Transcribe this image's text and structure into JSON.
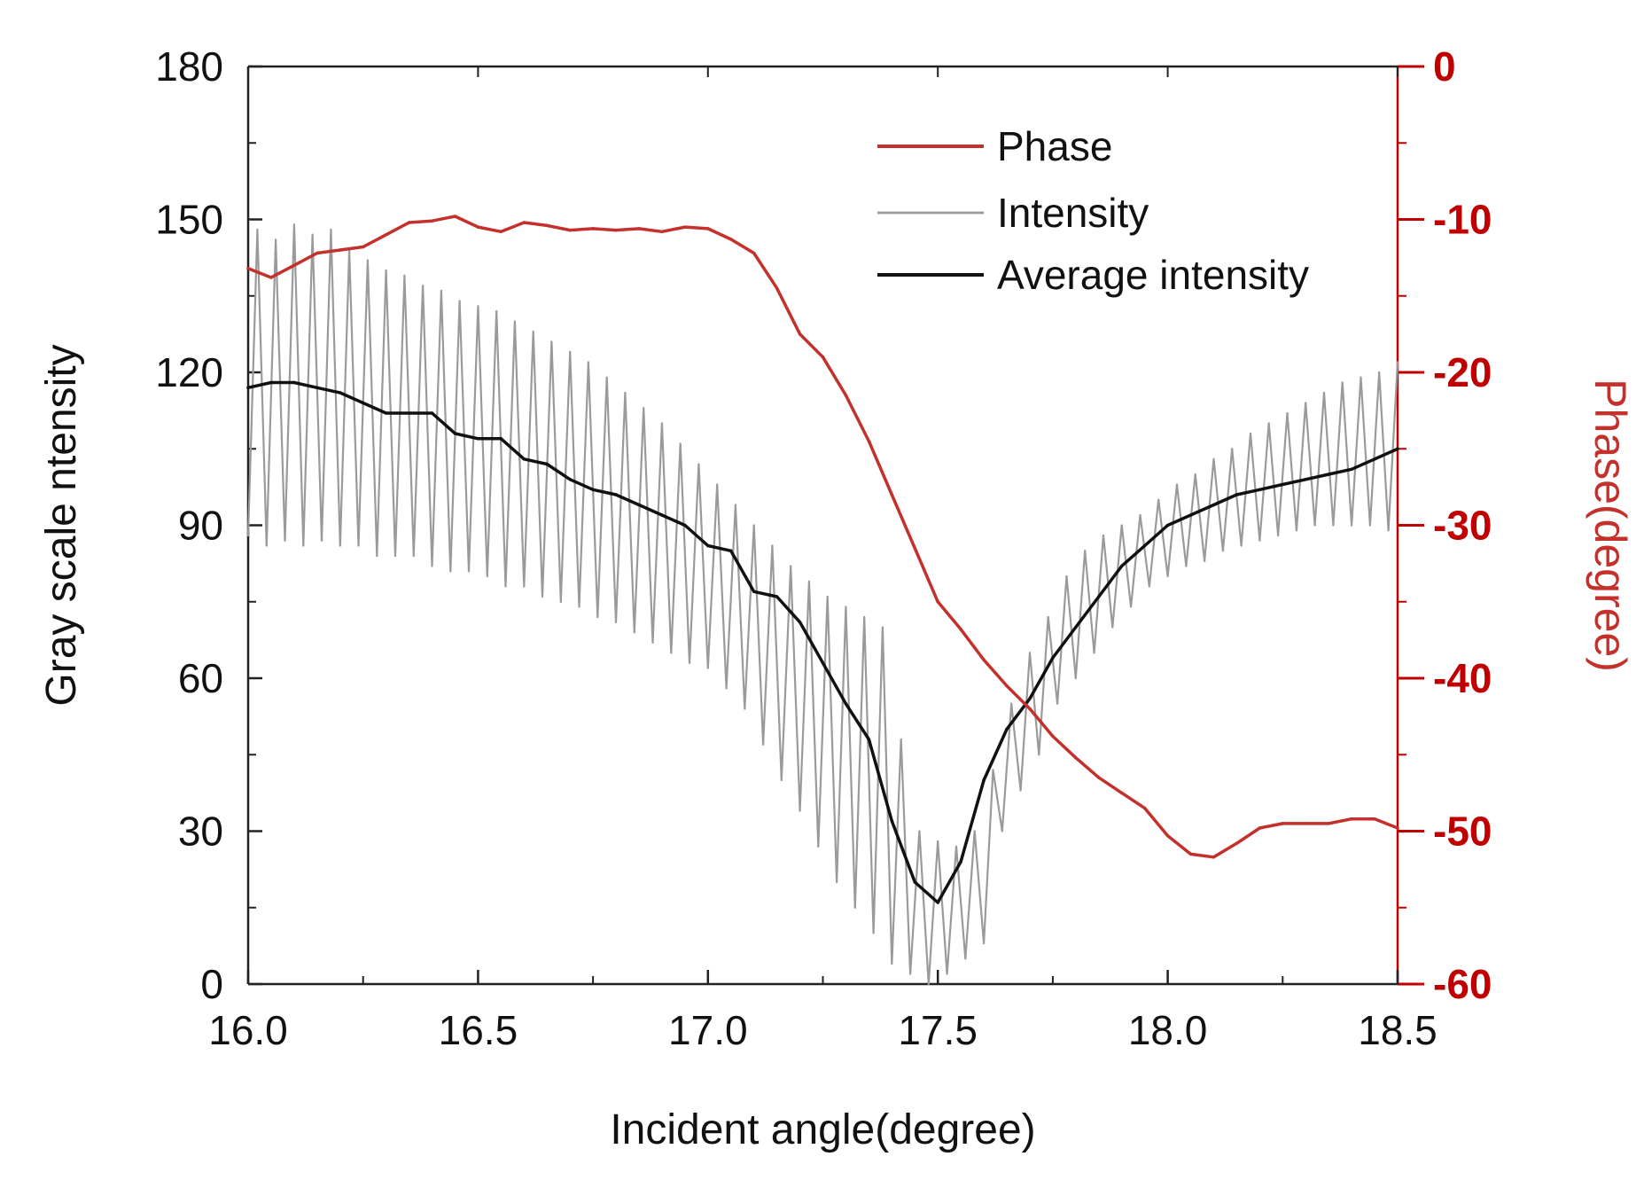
{
  "chart_data": {
    "type": "line",
    "title": "",
    "xlabel": "Incident angle(degree)",
    "ylabel": "Gray scale ntensity",
    "y2label": "Phase(degree)",
    "xlim": [
      16.0,
      18.5
    ],
    "ylim": [
      0,
      180
    ],
    "y2lim": [
      -60,
      0
    ],
    "x_ticks": [
      "16.0",
      "16.5",
      "17.0",
      "17.5",
      "18.0",
      "18.5"
    ],
    "y_ticks": [
      "0",
      "30",
      "60",
      "90",
      "120",
      "150",
      "180"
    ],
    "y2_ticks": [
      "-60",
      "-50",
      "-40",
      "-30",
      "-20",
      "-10",
      "0"
    ],
    "legend_position": "top-right",
    "colors": {
      "phase": "#c4302b",
      "intensity": "#9a9a9a",
      "average": "#111111",
      "right_axis": "#c00000"
    },
    "series": [
      {
        "name": "Phase",
        "axis": "right",
        "x": [
          16.0,
          16.05,
          16.1,
          16.15,
          16.2,
          16.25,
          16.3,
          16.35,
          16.4,
          16.45,
          16.5,
          16.55,
          16.6,
          16.65,
          16.7,
          16.75,
          16.8,
          16.85,
          16.9,
          16.95,
          17.0,
          17.05,
          17.1,
          17.15,
          17.2,
          17.25,
          17.3,
          17.35,
          17.4,
          17.45,
          17.5,
          17.55,
          17.6,
          17.65,
          17.7,
          17.75,
          17.8,
          17.85,
          17.9,
          17.95,
          18.0,
          18.05,
          18.1,
          18.15,
          18.2,
          18.25,
          18.3,
          18.35,
          18.4,
          18.45,
          18.5
        ],
        "values": [
          -13.2,
          -13.8,
          -13.0,
          -12.2,
          -12.0,
          -11.8,
          -11.0,
          -10.2,
          -10.1,
          -9.8,
          -10.5,
          -10.8,
          -10.2,
          -10.4,
          -10.7,
          -10.6,
          -10.7,
          -10.6,
          -10.8,
          -10.5,
          -10.6,
          -11.3,
          -12.2,
          -14.5,
          -17.5,
          -19.0,
          -21.5,
          -24.5,
          -28.0,
          -31.5,
          -35.0,
          -36.8,
          -38.8,
          -40.5,
          -42.0,
          -43.8,
          -45.2,
          -46.5,
          -47.5,
          -48.5,
          -50.3,
          -51.5,
          -51.7,
          -50.8,
          -49.8,
          -49.5,
          -49.5,
          -49.5,
          -49.2,
          -49.2,
          -49.8
        ]
      },
      {
        "name": "Intensity",
        "axis": "left",
        "x": [
          16.0,
          16.02,
          16.04,
          16.06,
          16.08,
          16.1,
          16.12,
          16.14,
          16.16,
          16.18,
          16.2,
          16.22,
          16.24,
          16.26,
          16.28,
          16.3,
          16.32,
          16.34,
          16.36,
          16.38,
          16.4,
          16.42,
          16.44,
          16.46,
          16.48,
          16.5,
          16.52,
          16.54,
          16.56,
          16.58,
          16.6,
          16.62,
          16.64,
          16.66,
          16.68,
          16.7,
          16.72,
          16.74,
          16.76,
          16.78,
          16.8,
          16.82,
          16.84,
          16.86,
          16.88,
          16.9,
          16.92,
          16.94,
          16.96,
          16.98,
          17.0,
          17.02,
          17.04,
          17.06,
          17.08,
          17.1,
          17.12,
          17.14,
          17.16,
          17.18,
          17.2,
          17.22,
          17.24,
          17.26,
          17.28,
          17.3,
          17.32,
          17.34,
          17.36,
          17.38,
          17.4,
          17.42,
          17.44,
          17.46,
          17.48,
          17.5,
          17.52,
          17.54,
          17.56,
          17.58,
          17.6,
          17.62,
          17.64,
          17.66,
          17.68,
          17.7,
          17.72,
          17.74,
          17.76,
          17.78,
          17.8,
          17.82,
          17.84,
          17.86,
          17.88,
          17.9,
          17.92,
          17.94,
          17.96,
          17.98,
          18.0,
          18.02,
          18.04,
          18.06,
          18.08,
          18.1,
          18.12,
          18.14,
          18.16,
          18.18,
          18.2,
          18.22,
          18.24,
          18.26,
          18.28,
          18.3,
          18.32,
          18.34,
          18.36,
          18.38,
          18.4,
          18.42,
          18.44,
          18.46,
          18.48,
          18.5
        ],
        "values": [
          88,
          148,
          86,
          146,
          87,
          149,
          86,
          147,
          87,
          148,
          86,
          144,
          86,
          142,
          84,
          140,
          84,
          139,
          84,
          137,
          82,
          136,
          81,
          134,
          81,
          133,
          80,
          132,
          78,
          130,
          78,
          128,
          76,
          126,
          75,
          124,
          74,
          122,
          72,
          119,
          71,
          116,
          69,
          113,
          67,
          110,
          65,
          106,
          63,
          102,
          62,
          98,
          58,
          94,
          54,
          90,
          47,
          86,
          40,
          82,
          34,
          79,
          27,
          76,
          20,
          74,
          15,
          72,
          10,
          70,
          4,
          48,
          2,
          30,
          0,
          28,
          2,
          27,
          5,
          30,
          8,
          42,
          30,
          55,
          38,
          65,
          45,
          72,
          55,
          80,
          60,
          85,
          65,
          88,
          70,
          90,
          74,
          92,
          78,
          95,
          80,
          98,
          82,
          100,
          83,
          103,
          85,
          105,
          86,
          108,
          87,
          110,
          88,
          112,
          89,
          114,
          90,
          116,
          90,
          118,
          90,
          119,
          90,
          120,
          89,
          122
        ]
      },
      {
        "name": "Average intensity",
        "axis": "left",
        "x": [
          16.0,
          16.05,
          16.1,
          16.15,
          16.2,
          16.25,
          16.3,
          16.35,
          16.4,
          16.45,
          16.5,
          16.55,
          16.6,
          16.65,
          16.7,
          16.75,
          16.8,
          16.85,
          16.9,
          16.95,
          17.0,
          17.05,
          17.1,
          17.15,
          17.2,
          17.25,
          17.3,
          17.35,
          17.4,
          17.45,
          17.5,
          17.55,
          17.6,
          17.65,
          17.7,
          17.75,
          17.8,
          17.85,
          17.9,
          17.95,
          18.0,
          18.05,
          18.1,
          18.15,
          18.2,
          18.25,
          18.3,
          18.35,
          18.4,
          18.45,
          18.5
        ],
        "values": [
          117,
          118,
          118,
          117,
          116,
          114,
          112,
          112,
          112,
          108,
          107,
          107,
          103,
          102,
          99,
          97,
          96,
          94,
          92,
          90,
          86,
          85,
          77,
          76,
          71,
          63,
          55,
          48,
          32,
          20,
          16,
          24,
          40,
          50,
          56,
          64,
          70,
          76,
          82,
          86,
          90,
          92,
          94,
          96,
          97,
          98,
          99,
          100,
          101,
          103,
          105
        ]
      }
    ]
  }
}
